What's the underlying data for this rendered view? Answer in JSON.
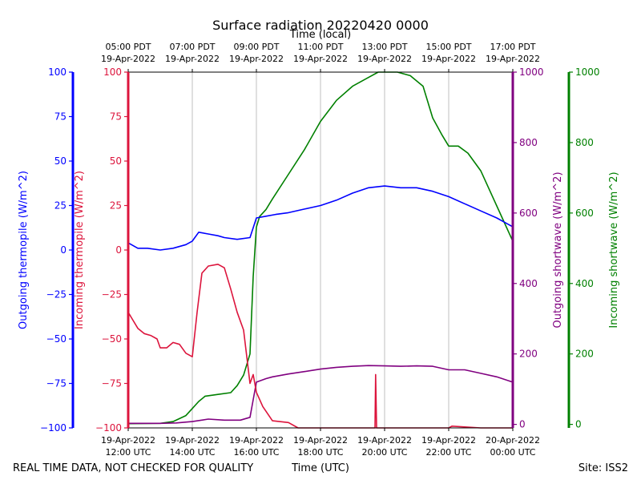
{
  "chart_data": {
    "type": "line",
    "title": "Surface radiation 20220420 0000",
    "top_axis_label": "Time (local)",
    "top_ticks": [
      {
        "l1": "05:00 PDT",
        "l2": "19-Apr-2022"
      },
      {
        "l1": "07:00 PDT",
        "l2": "19-Apr-2022"
      },
      {
        "l1": "09:00 PDT",
        "l2": "19-Apr-2022"
      },
      {
        "l1": "11:00 PDT",
        "l2": "19-Apr-2022"
      },
      {
        "l1": "13:00 PDT",
        "l2": "19-Apr-2022"
      },
      {
        "l1": "15:00 PDT",
        "l2": "19-Apr-2022"
      },
      {
        "l1": "17:00 PDT",
        "l2": "19-Apr-2022"
      }
    ],
    "bottom_axis_label": "Time (UTC)",
    "bottom_ticks": [
      {
        "l1": "19-Apr-2022",
        "l2": "12:00 UTC"
      },
      {
        "l1": "19-Apr-2022",
        "l2": "14:00 UTC"
      },
      {
        "l1": "19-Apr-2022",
        "l2": "16:00 UTC"
      },
      {
        "l1": "19-Apr-2022",
        "l2": "18:00 UTC"
      },
      {
        "l1": "19-Apr-2022",
        "l2": "20:00 UTC"
      },
      {
        "l1": "19-Apr-2022",
        "l2": "22:00 UTC"
      },
      {
        "l1": "20-Apr-2022",
        "l2": "00:00 UTC"
      }
    ],
    "x_range_utc_hours": [
      12,
      24
    ],
    "grid": "vertical at x ticks",
    "footer_left": "REAL TIME DATA, NOT CHECKED FOR QUALITY",
    "footer_right": "Site: ISS2",
    "axes": {
      "outgoing_thermopile": {
        "label": "Outgoing thermopile (W/m^2)",
        "color": "#0000ff",
        "ylim": [
          -100,
          100
        ],
        "ticks": [
          -100,
          -75,
          -50,
          -25,
          0,
          25,
          50,
          75,
          100
        ]
      },
      "incoming_thermopile": {
        "label": "Incoming thermopile (W/m^2)",
        "color": "#dc143c",
        "ylim": [
          -100,
          100
        ],
        "ticks": [
          -100,
          -75,
          -50,
          -25,
          0,
          25,
          50,
          75,
          100
        ]
      },
      "outgoing_shortwave": {
        "label": "Outgoing shortwave (W/m^2)",
        "color": "#800080",
        "ylim": [
          -10,
          1000
        ],
        "ticks": [
          0,
          200,
          400,
          600,
          800,
          1000
        ]
      },
      "incoming_shortwave": {
        "label": "Incoming shortwave (W/m^2)",
        "color": "#008000",
        "ylim": [
          -10,
          1000
        ],
        "ticks": [
          0,
          200,
          400,
          600,
          800,
          1000
        ]
      }
    },
    "series": [
      {
        "key": "incoming_shortwave",
        "x": [
          12.0,
          13.0,
          13.4,
          13.8,
          14.0,
          14.2,
          14.4,
          14.8,
          15.2,
          15.4,
          15.6,
          15.8,
          15.9,
          16.0,
          16.1,
          16.3,
          16.5,
          17.0,
          17.5,
          18.0,
          18.5,
          19.0,
          19.5,
          19.8,
          20.0,
          20.4,
          20.8,
          21.2,
          21.5,
          21.8,
          22.0,
          22.3,
          22.6,
          23.0,
          23.5,
          24.0
        ],
        "y": [
          2,
          3,
          8,
          25,
          45,
          65,
          80,
          85,
          90,
          110,
          140,
          200,
          420,
          560,
          590,
          610,
          640,
          710,
          780,
          860,
          920,
          960,
          985,
          1000,
          1000,
          1000,
          990,
          960,
          870,
          820,
          790,
          790,
          770,
          720,
          620,
          520
        ]
      },
      {
        "key": "outgoing_shortwave",
        "x": [
          12.0,
          13.0,
          13.5,
          14.0,
          14.5,
          15.0,
          15.5,
          15.8,
          16.0,
          16.3,
          16.5,
          17.0,
          17.5,
          18.0,
          18.5,
          19.0,
          19.5,
          20.0,
          20.5,
          21.0,
          21.5,
          22.0,
          22.5,
          23.0,
          23.5,
          24.0
        ],
        "y": [
          3,
          3,
          4,
          8,
          15,
          12,
          12,
          20,
          120,
          130,
          135,
          143,
          150,
          157,
          162,
          165,
          167,
          166,
          165,
          166,
          165,
          155,
          155,
          145,
          135,
          120
        ]
      },
      {
        "key": "outgoing_thermopile",
        "x": [
          12.0,
          12.3,
          12.6,
          13.0,
          13.4,
          13.8,
          14.0,
          14.2,
          14.5,
          14.8,
          15.0,
          15.4,
          15.8,
          16.0,
          16.3,
          16.6,
          17.0,
          17.5,
          18.0,
          18.5,
          19.0,
          19.5,
          20.0,
          20.5,
          21.0,
          21.5,
          22.0,
          22.5,
          23.0,
          23.5,
          24.0
        ],
        "y": [
          4,
          1,
          1,
          0,
          1,
          3,
          5,
          10,
          9,
          8,
          7,
          6,
          7,
          18,
          19,
          20,
          21,
          23,
          25,
          28,
          32,
          35,
          36,
          35,
          35,
          33,
          30,
          26,
          22,
          18,
          13
        ]
      },
      {
        "key": "incoming_thermopile",
        "x": [
          12.0,
          12.1,
          12.3,
          12.5,
          12.7,
          12.9,
          13.0,
          13.2,
          13.4,
          13.6,
          13.8,
          14.0,
          14.15,
          14.3,
          14.5,
          14.8,
          15.0,
          15.2,
          15.4,
          15.6,
          15.8,
          15.9,
          16.0,
          16.2,
          16.5,
          17.0,
          17.3,
          17.8,
          18.5,
          19.5,
          19.7,
          19.72,
          19.75,
          20.0,
          21.0,
          22.0,
          22.1,
          23.0,
          23.5,
          24.0
        ],
        "y": [
          -35,
          -38,
          -44,
          -47,
          -48,
          -50,
          -55,
          -55,
          -52,
          -53,
          -58,
          -60,
          -35,
          -13,
          -9,
          -8,
          -10,
          -22,
          -35,
          -45,
          -75,
          -70,
          -80,
          -88,
          -96,
          -97,
          -100,
          -100,
          -100,
          -100,
          -100,
          -70,
          -100,
          -100,
          -100,
          -100,
          -99,
          -100,
          -100,
          -100
        ]
      }
    ]
  }
}
